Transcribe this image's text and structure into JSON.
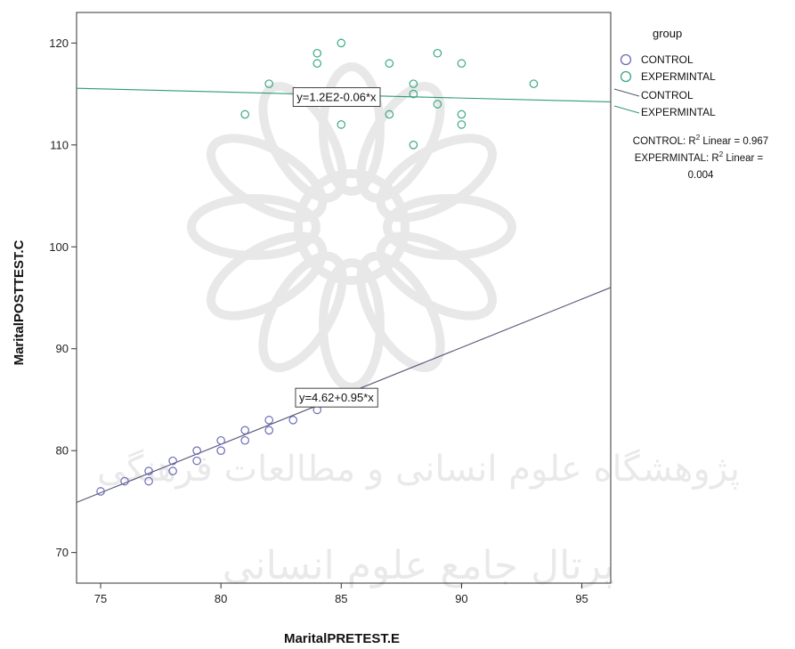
{
  "chart_data": {
    "type": "scatter",
    "xlabel": "MaritalPRETEST.E",
    "ylabel": "MaritalPOSTTEST.C",
    "xlim": [
      74,
      96.2
    ],
    "ylim": [
      67,
      123
    ],
    "xticks": [
      75,
      80,
      85,
      90,
      95
    ],
    "yticks": [
      70,
      80,
      90,
      100,
      110,
      120
    ],
    "grid": false,
    "legend_title": "group",
    "legend_position": "right",
    "series": [
      {
        "name": "CONTROL",
        "color": "#6b6bb5",
        "line_color": "#555577",
        "points": [
          [
            75,
            76
          ],
          [
            76,
            77
          ],
          [
            77,
            77
          ],
          [
            77,
            78
          ],
          [
            78,
            78
          ],
          [
            78,
            79
          ],
          [
            79,
            79
          ],
          [
            79,
            80
          ],
          [
            80,
            80
          ],
          [
            80,
            81
          ],
          [
            81,
            81
          ],
          [
            81,
            82
          ],
          [
            82,
            82
          ],
          [
            82,
            83
          ],
          [
            83,
            83
          ],
          [
            84,
            84
          ]
        ],
        "fit": {
          "intercept": 4.62,
          "slope": 0.95
        },
        "equation": "y=4.62+0.95*x",
        "r_squared_text": "CONTROL: R² Linear = 0.967"
      },
      {
        "name": "EXPERMINTAL",
        "color": "#3aa787",
        "line_color": "#2e9a7a",
        "points": [
          [
            81,
            113
          ],
          [
            82,
            116
          ],
          [
            84,
            119
          ],
          [
            84,
            118
          ],
          [
            85,
            120
          ],
          [
            85,
            112
          ],
          [
            87,
            118
          ],
          [
            87,
            113
          ],
          [
            88,
            116
          ],
          [
            88,
            115
          ],
          [
            88,
            110
          ],
          [
            89,
            119
          ],
          [
            89,
            114
          ],
          [
            90,
            118
          ],
          [
            90,
            113
          ],
          [
            90,
            112
          ],
          [
            93,
            116
          ]
        ],
        "fit": {
          "intercept": 120,
          "slope": -0.06
        },
        "equation": "y=1.2E2-0.06*x",
        "r_squared_text": "EXPERMINTAL: R² Linear = 0.004"
      }
    ]
  },
  "legend": {
    "title": "group",
    "marker_items": [
      "CONTROL",
      "EXPERMINTAL"
    ],
    "line_items": [
      "CONTROL",
      "EXPERMINTAL"
    ],
    "rsq_line1_prefix": "CONTROL: R",
    "rsq_line1_suffix": " Linear = 0.967",
    "rsq_line2_prefix": "EXPERMINTAL: R",
    "rsq_line2_suffix": " Linear =",
    "rsq_line3": "0.004",
    "sup": "2"
  },
  "watermark": {
    "line1": "پژوهشگاه علوم انسانی و مطالعات فرهنگی",
    "line2": "پرتال جامع علوم انسانی"
  }
}
